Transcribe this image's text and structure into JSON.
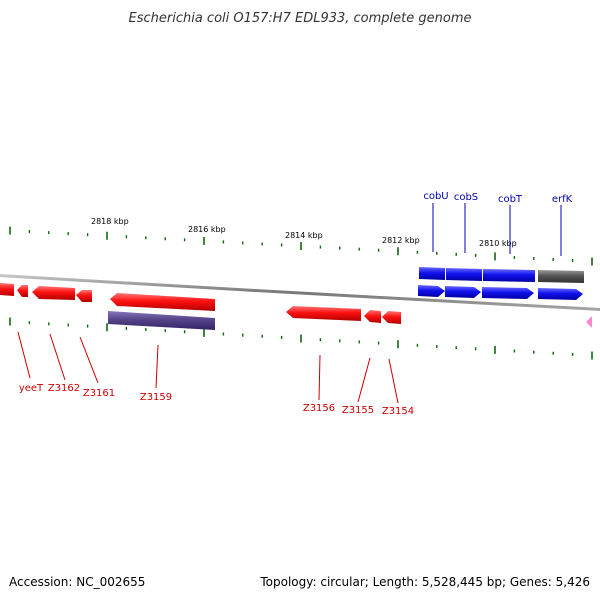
{
  "title": "Escherichia coli O157:H7 EDL933, complete genome",
  "footer": {
    "accession": "Accession: NC_002655",
    "summary": "Topology: circular; Length: 5,528,445 bp; Genes: 5,426"
  },
  "scale_labels": [
    "2818 kbp",
    "2816 kbp",
    "2814 kbp",
    "2812 kbp",
    "2810 kbp"
  ],
  "colors": {
    "reverse_strand": "#ff0000",
    "forward_strand": "#0000ff",
    "rna": "#555555",
    "other": "#554488",
    "tick": "#116611",
    "backbone": "#888888",
    "pink_marker": "#ff88cc"
  },
  "genes_top": [
    {
      "name": "cobU"
    },
    {
      "name": "cobS"
    },
    {
      "name": "cobT"
    },
    {
      "name": "erfK"
    }
  ],
  "genes_bottom": [
    {
      "name": "yeeT"
    },
    {
      "name": "Z3162"
    },
    {
      "name": "Z3161"
    },
    {
      "name": "Z3159"
    },
    {
      "name": "Z3156"
    },
    {
      "name": "Z3155"
    },
    {
      "name": "Z3154"
    }
  ]
}
